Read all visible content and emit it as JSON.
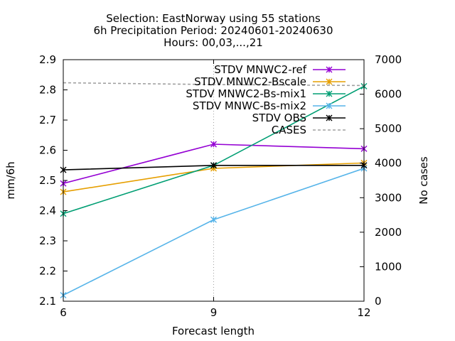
{
  "chart_data": {
    "type": "line",
    "title_lines": [
      "Selection: EastNorway using    55 stations",
      "6h Precipitation   Period: 20240601-20240630",
      "Hours: 00,03,...,21"
    ],
    "xlabel": "Forecast length",
    "ylabel": "mm/6h",
    "y2label": "No cases",
    "x": [
      6,
      9,
      12
    ],
    "x_ticks": [
      "6",
      "9",
      "12"
    ],
    "ylim": [
      2.1,
      2.9
    ],
    "y_ticks": [
      "2.1",
      "2.2",
      "2.3",
      "2.4",
      "2.5",
      "2.6",
      "2.7",
      "2.8",
      "2.9"
    ],
    "y2lim": [
      0,
      7000
    ],
    "y2_ticks": [
      "0",
      "1000",
      "2000",
      "3000",
      "4000",
      "5000",
      "6000",
      "7000"
    ],
    "grid": "vertical dotted at x ticks",
    "legend_position": "top-right",
    "series": [
      {
        "name": "STDV MNWC2-ref",
        "color": "#9400d3",
        "axis": "y",
        "dash": false,
        "marker": true,
        "values": [
          2.49,
          2.62,
          2.605
        ]
      },
      {
        "name": "STDV MNWC2-Bscale",
        "color": "#e69f00",
        "axis": "y",
        "dash": false,
        "marker": true,
        "values": [
          2.462,
          2.54,
          2.558
        ]
      },
      {
        "name": "STDV MNWC2-Bs-mix1",
        "color": "#009e73",
        "axis": "y",
        "dash": false,
        "marker": true,
        "values": [
          2.39,
          2.55,
          2.812
        ]
      },
      {
        "name": "STDV MNWC-Bs-mix2",
        "color": "#56b4e9",
        "axis": "y",
        "dash": false,
        "marker": true,
        "values": [
          2.12,
          2.37,
          2.54
        ]
      },
      {
        "name": "STDV OBS",
        "color": "#000000",
        "axis": "y",
        "dash": false,
        "marker": true,
        "values": [
          2.535,
          2.55,
          2.55
        ]
      },
      {
        "name": "CASES",
        "color": "#a0a0a0",
        "axis": "y2",
        "dash": true,
        "marker": false,
        "values": [
          6330,
          6280,
          6250
        ]
      }
    ]
  }
}
